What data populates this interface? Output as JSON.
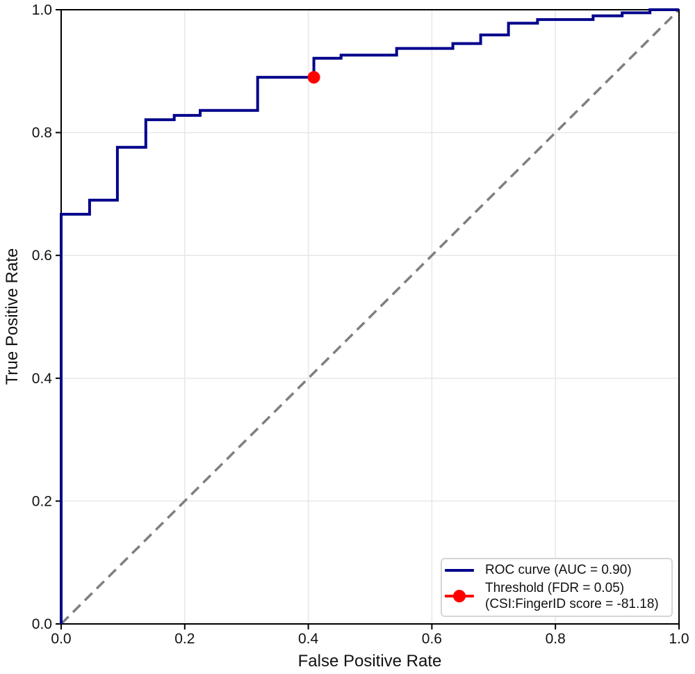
{
  "chart_data": {
    "type": "line",
    "subtype": "roc-step-curve",
    "title": "",
    "xlabel": "False Positive Rate",
    "ylabel": "True Positive Rate",
    "xlim": [
      0.0,
      1.0
    ],
    "ylim": [
      0.0,
      1.0
    ],
    "xtick_labels": [
      "0.0",
      "0.2",
      "0.4",
      "0.6",
      "0.8",
      "1.0"
    ],
    "ytick_labels": [
      "0.0",
      "0.2",
      "0.4",
      "0.6",
      "0.8",
      "1.0"
    ],
    "grid": true,
    "legend_position": "lower right",
    "auc": 0.9,
    "threshold": {
      "fdr": 0.05,
      "csi_fingerid_score": -81.18,
      "fpr": 0.409,
      "tpr": 0.89
    },
    "colors": {
      "roc_curve": "#00008b",
      "diagonal": "#7f7f7f",
      "threshold_marker": "#ff0000",
      "gridline": "#e7e7e7",
      "spine": "#000000",
      "text": "#111111"
    },
    "series": [
      {
        "name": "ROC curve (AUC = 0.90)",
        "style": "step-solid",
        "vertices": [
          [
            0.0,
            0.0
          ],
          [
            0.0,
            0.667
          ],
          [
            0.046,
            0.667
          ],
          [
            0.046,
            0.69
          ],
          [
            0.091,
            0.69
          ],
          [
            0.091,
            0.776
          ],
          [
            0.137,
            0.776
          ],
          [
            0.137,
            0.821
          ],
          [
            0.183,
            0.821
          ],
          [
            0.183,
            0.828
          ],
          [
            0.225,
            0.828
          ],
          [
            0.225,
            0.836
          ],
          [
            0.318,
            0.836
          ],
          [
            0.318,
            0.89
          ],
          [
            0.409,
            0.89
          ],
          [
            0.409,
            0.921
          ],
          [
            0.453,
            0.921
          ],
          [
            0.453,
            0.926
          ],
          [
            0.543,
            0.926
          ],
          [
            0.543,
            0.937
          ],
          [
            0.634,
            0.937
          ],
          [
            0.634,
            0.945
          ],
          [
            0.679,
            0.945
          ],
          [
            0.679,
            0.959
          ],
          [
            0.724,
            0.959
          ],
          [
            0.724,
            0.978
          ],
          [
            0.771,
            0.978
          ],
          [
            0.771,
            0.984
          ],
          [
            0.861,
            0.984
          ],
          [
            0.861,
            0.99
          ],
          [
            0.908,
            0.99
          ],
          [
            0.908,
            0.995
          ],
          [
            0.953,
            0.995
          ],
          [
            0.953,
            1.0
          ],
          [
            1.0,
            1.0
          ]
        ]
      },
      {
        "name": "Chance diagonal",
        "style": "dashed",
        "vertices": [
          [
            0.0,
            0.0
          ],
          [
            1.0,
            1.0
          ]
        ]
      },
      {
        "name": "Threshold point",
        "style": "marker",
        "vertices": [
          [
            0.409,
            0.89
          ]
        ]
      }
    ]
  },
  "legend": {
    "items": [
      {
        "label": "ROC curve (AUC = 0.90)",
        "marker": "line"
      },
      {
        "label_line1": "Threshold (FDR = 0.05)",
        "label_line2": "(CSI:FingerID score = -81.18)",
        "marker": "line-dot"
      }
    ]
  }
}
